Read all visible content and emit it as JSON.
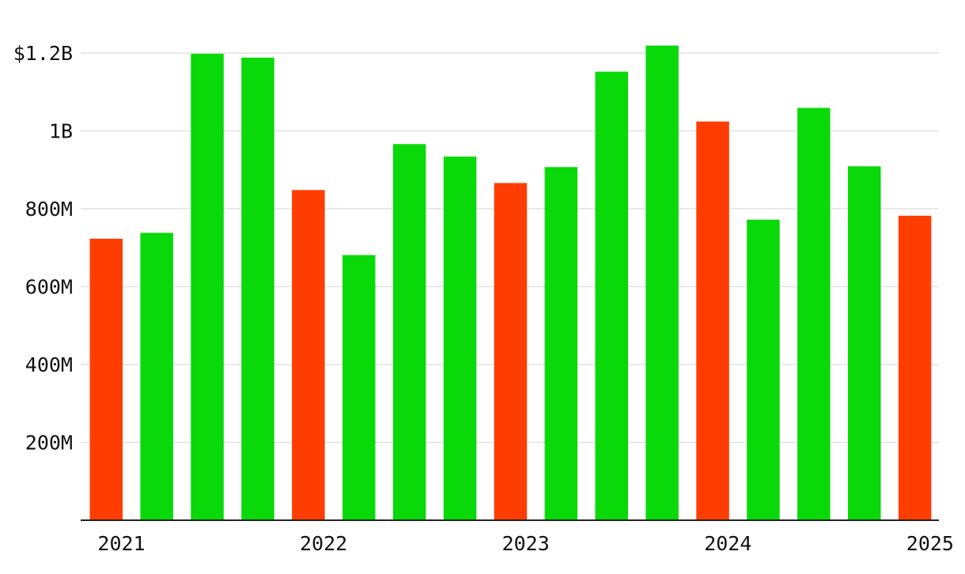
{
  "chart_data": {
    "type": "bar",
    "title": "",
    "xlabel": "",
    "ylabel": "",
    "ylim": [
      0,
      1240000000
    ],
    "grid": true,
    "y_ticks": [
      {
        "value": 200000000,
        "label": "200M"
      },
      {
        "value": 400000000,
        "label": "400M"
      },
      {
        "value": 600000000,
        "label": "600M"
      },
      {
        "value": 800000000,
        "label": "800M"
      },
      {
        "value": 1000000000,
        "label": "1B"
      },
      {
        "value": 1200000000,
        "label": "$1.2B"
      }
    ],
    "x_ticks": [
      "2021",
      "2022",
      "2023",
      "2024",
      "2025"
    ],
    "colors": {
      "up": "#09d909",
      "down": "#ff3d00"
    },
    "bars": [
      {
        "value": 723000000,
        "direction": "down"
      },
      {
        "value": 738000000,
        "direction": "up"
      },
      {
        "value": 1198000000,
        "direction": "up"
      },
      {
        "value": 1188000000,
        "direction": "up"
      },
      {
        "value": 848000000,
        "direction": "down"
      },
      {
        "value": 681000000,
        "direction": "up"
      },
      {
        "value": 966000000,
        "direction": "up"
      },
      {
        "value": 934000000,
        "direction": "up"
      },
      {
        "value": 866000000,
        "direction": "down"
      },
      {
        "value": 907000000,
        "direction": "up"
      },
      {
        "value": 1152000000,
        "direction": "up"
      },
      {
        "value": 1219000000,
        "direction": "up"
      },
      {
        "value": 1024000000,
        "direction": "down"
      },
      {
        "value": 772000000,
        "direction": "up"
      },
      {
        "value": 1059000000,
        "direction": "up"
      },
      {
        "value": 909000000,
        "direction": "up"
      },
      {
        "value": 782000000,
        "direction": "down"
      }
    ]
  }
}
